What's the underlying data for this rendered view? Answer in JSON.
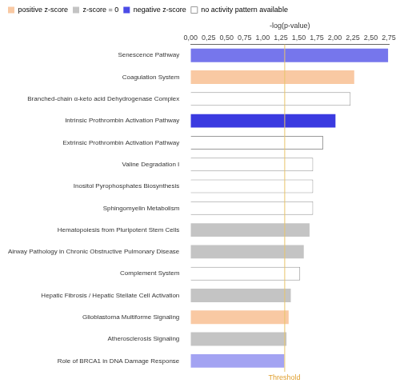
{
  "chart_data": {
    "type": "bar",
    "orientation": "horizontal",
    "xlabel": "-log(p-value)",
    "categories": [
      "Senescence Pathway",
      "Coagulation System",
      "Branched-chain α-keto acid Dehydrogenase Complex",
      "Intrinsic Prothrombin Activation Pathway",
      "Extrinsic Prothrombin Activation Pathway",
      "Valine Degradation I",
      "Inositol Pyrophosphates Biosynthesis",
      "Sphingomyelin Metabolism",
      "Hematopoiesis from Pluripotent Stem Cells",
      "Airway Pathology in Chronic Obstructive Pulmonary Disease",
      "Complement System",
      "Hepatic Fibrosis / Hepatic Stellate Cell Activation",
      "Glioblastoma Multiforme Signaling",
      "Atherosclerosis Signaling",
      "Role of BRCA1 in DNA Damage Response"
    ],
    "series": [
      {
        "name": "positive z-score",
        "color": "#f9c9a3",
        "values": [
          null,
          2.27,
          null,
          null,
          null,
          null,
          null,
          null,
          null,
          null,
          null,
          null,
          1.36,
          null,
          null
        ]
      },
      {
        "name": "z-score = 0",
        "color": "#c4c4c4",
        "values": [
          null,
          null,
          null,
          null,
          null,
          null,
          null,
          null,
          1.65,
          1.57,
          null,
          1.39,
          null,
          1.33,
          null
        ]
      },
      {
        "name": "negative z-score",
        "color": "#4b4be6",
        "colors": [
          "#7676ec",
          null,
          null,
          "#3a3ae0",
          null,
          null,
          null,
          null,
          null,
          null,
          null,
          null,
          null,
          null,
          "#a3a3f2"
        ],
        "values": [
          2.74,
          null,
          null,
          2.01,
          null,
          null,
          null,
          null,
          null,
          null,
          null,
          null,
          null,
          null,
          1.3
        ]
      },
      {
        "name": "no activity pattern available",
        "color": "#ffffff",
        "values": [
          null,
          null,
          2.22,
          null,
          1.84,
          1.7,
          1.7,
          1.7,
          null,
          null,
          1.52,
          null,
          null,
          null,
          null
        ]
      }
    ],
    "xlim": [
      0,
      2.75
    ],
    "xticks": [
      {
        "value": 0,
        "label": "0,00"
      },
      {
        "value": 0.25,
        "label": "0,25"
      },
      {
        "value": 0.5,
        "label": "0,50"
      },
      {
        "value": 0.75,
        "label": "0,75"
      },
      {
        "value": 1,
        "label": "1,00"
      },
      {
        "value": 1.25,
        "label": "1,25"
      },
      {
        "value": 1.5,
        "label": "1,50"
      },
      {
        "value": 1.75,
        "label": "1,75"
      },
      {
        "value": 2,
        "label": "2,00"
      },
      {
        "value": 2.25,
        "label": "2,25"
      },
      {
        "value": 2.5,
        "label": "2,50"
      },
      {
        "value": 2.75,
        "label": "2,75"
      }
    ],
    "annotations": [
      {
        "text": "Threshold",
        "x": 1.3
      }
    ],
    "grid": false,
    "legend": "top left"
  }
}
